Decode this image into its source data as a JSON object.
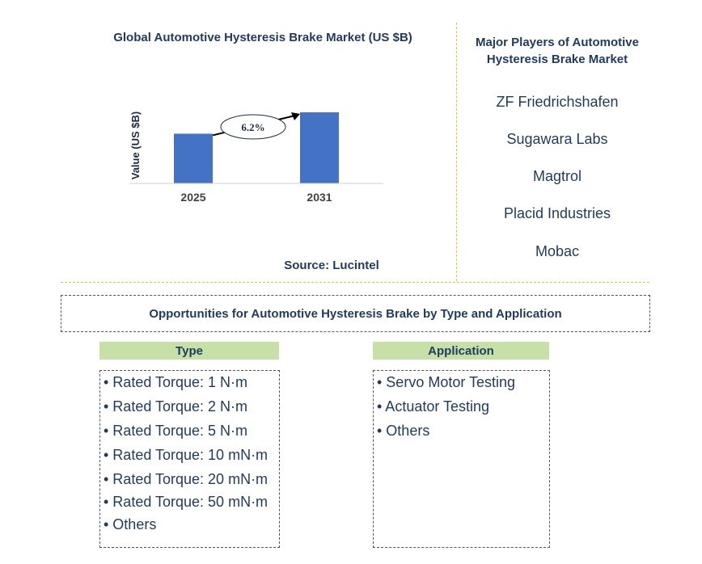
{
  "chart_data": {
    "type": "bar",
    "title": "Global Automotive Hysteresis Brake Market (US $B)",
    "categories": [
      "2025",
      "2031"
    ],
    "values": [
      1.0,
      1.43
    ],
    "ylabel": "Value (US $B)",
    "xlabel": "",
    "growth_annotation": "6.2%",
    "bar_color": "#4472c4",
    "source": "Source: Lucintel"
  },
  "players": {
    "title": "Major Players of Automotive Hysteresis Brake Market",
    "items": [
      "ZF Friedrichshafen",
      "Sugawara Labs",
      "Magtrol",
      "Placid Industries",
      "Mobac"
    ]
  },
  "opportunities": {
    "title": "Opportunities for Automotive Hysteresis Brake by Type and Application",
    "type": {
      "header": "Type",
      "items": [
        "• Rated Torque: 1 N·m",
        "• Rated Torque: 2 N·m",
        "• Rated Torque: 5 N·m",
        "• Rated Torque: 10 mN·m",
        "• Rated Torque: 20 mN·m",
        "• Rated Torque: 50 mN·m",
        "• Others"
      ]
    },
    "application": {
      "header": "Application",
      "items": [
        "• Servo Motor Testing",
        "• Actuator Testing",
        "• Others"
      ]
    }
  },
  "colors": {
    "accent_green": "#c6e0a8",
    "divider": "#e6c23a",
    "text": "#1f3a5f"
  }
}
